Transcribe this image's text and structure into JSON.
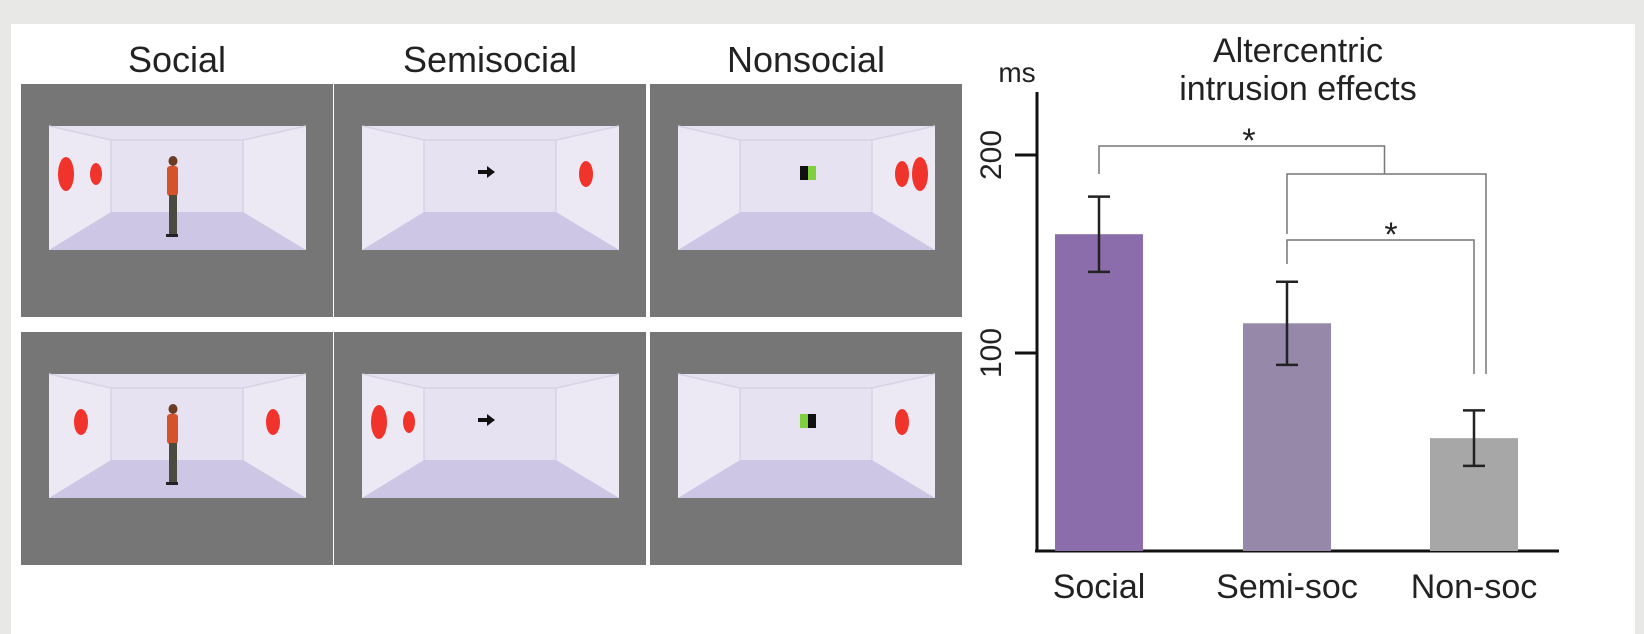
{
  "stimuli": {
    "columns": [
      {
        "title": "Social",
        "rows": [
          {
            "avatar": "person",
            "discs": [
              "left",
              "left"
            ]
          },
          {
            "avatar": "person",
            "discs": [
              "left",
              "right"
            ]
          }
        ]
      },
      {
        "title": "Semisocial",
        "rows": [
          {
            "avatar": "arrow",
            "discs": [
              "right"
            ]
          },
          {
            "avatar": "arrow",
            "discs": [
              "left",
              "left"
            ]
          }
        ]
      },
      {
        "title": "Nonsocial",
        "rows": [
          {
            "avatar": "block-green-right",
            "discs": [
              "right",
              "right"
            ]
          },
          {
            "avatar": "block-green-left",
            "discs": [
              "right"
            ]
          }
        ]
      }
    ],
    "colors": {
      "panel_bg": "#767676",
      "room_wall": "#e6e2f1",
      "room_floor": "#cdc6e4",
      "disc": "#f0342b"
    }
  },
  "chart_data": {
    "type": "bar",
    "title": "Altercentric\nintrusion effects",
    "ylabel": "ms",
    "categories": [
      "Social",
      "Semi-soc",
      "Non-soc"
    ],
    "values": [
      160,
      115,
      57
    ],
    "errors": [
      19,
      21,
      14
    ],
    "ylim": [
      0,
      200
    ],
    "yticks": [
      100,
      200
    ],
    "bar_colors": [
      "#8a6daa",
      "#9588a9",
      "#a7a7a7"
    ],
    "significance": [
      {
        "from": "Social",
        "to": "Semi-soc + Non-soc",
        "label": "*"
      },
      {
        "from": "Semi-soc",
        "to": "Non-soc",
        "label": "*"
      }
    ],
    "grid": false,
    "legend": "none"
  }
}
